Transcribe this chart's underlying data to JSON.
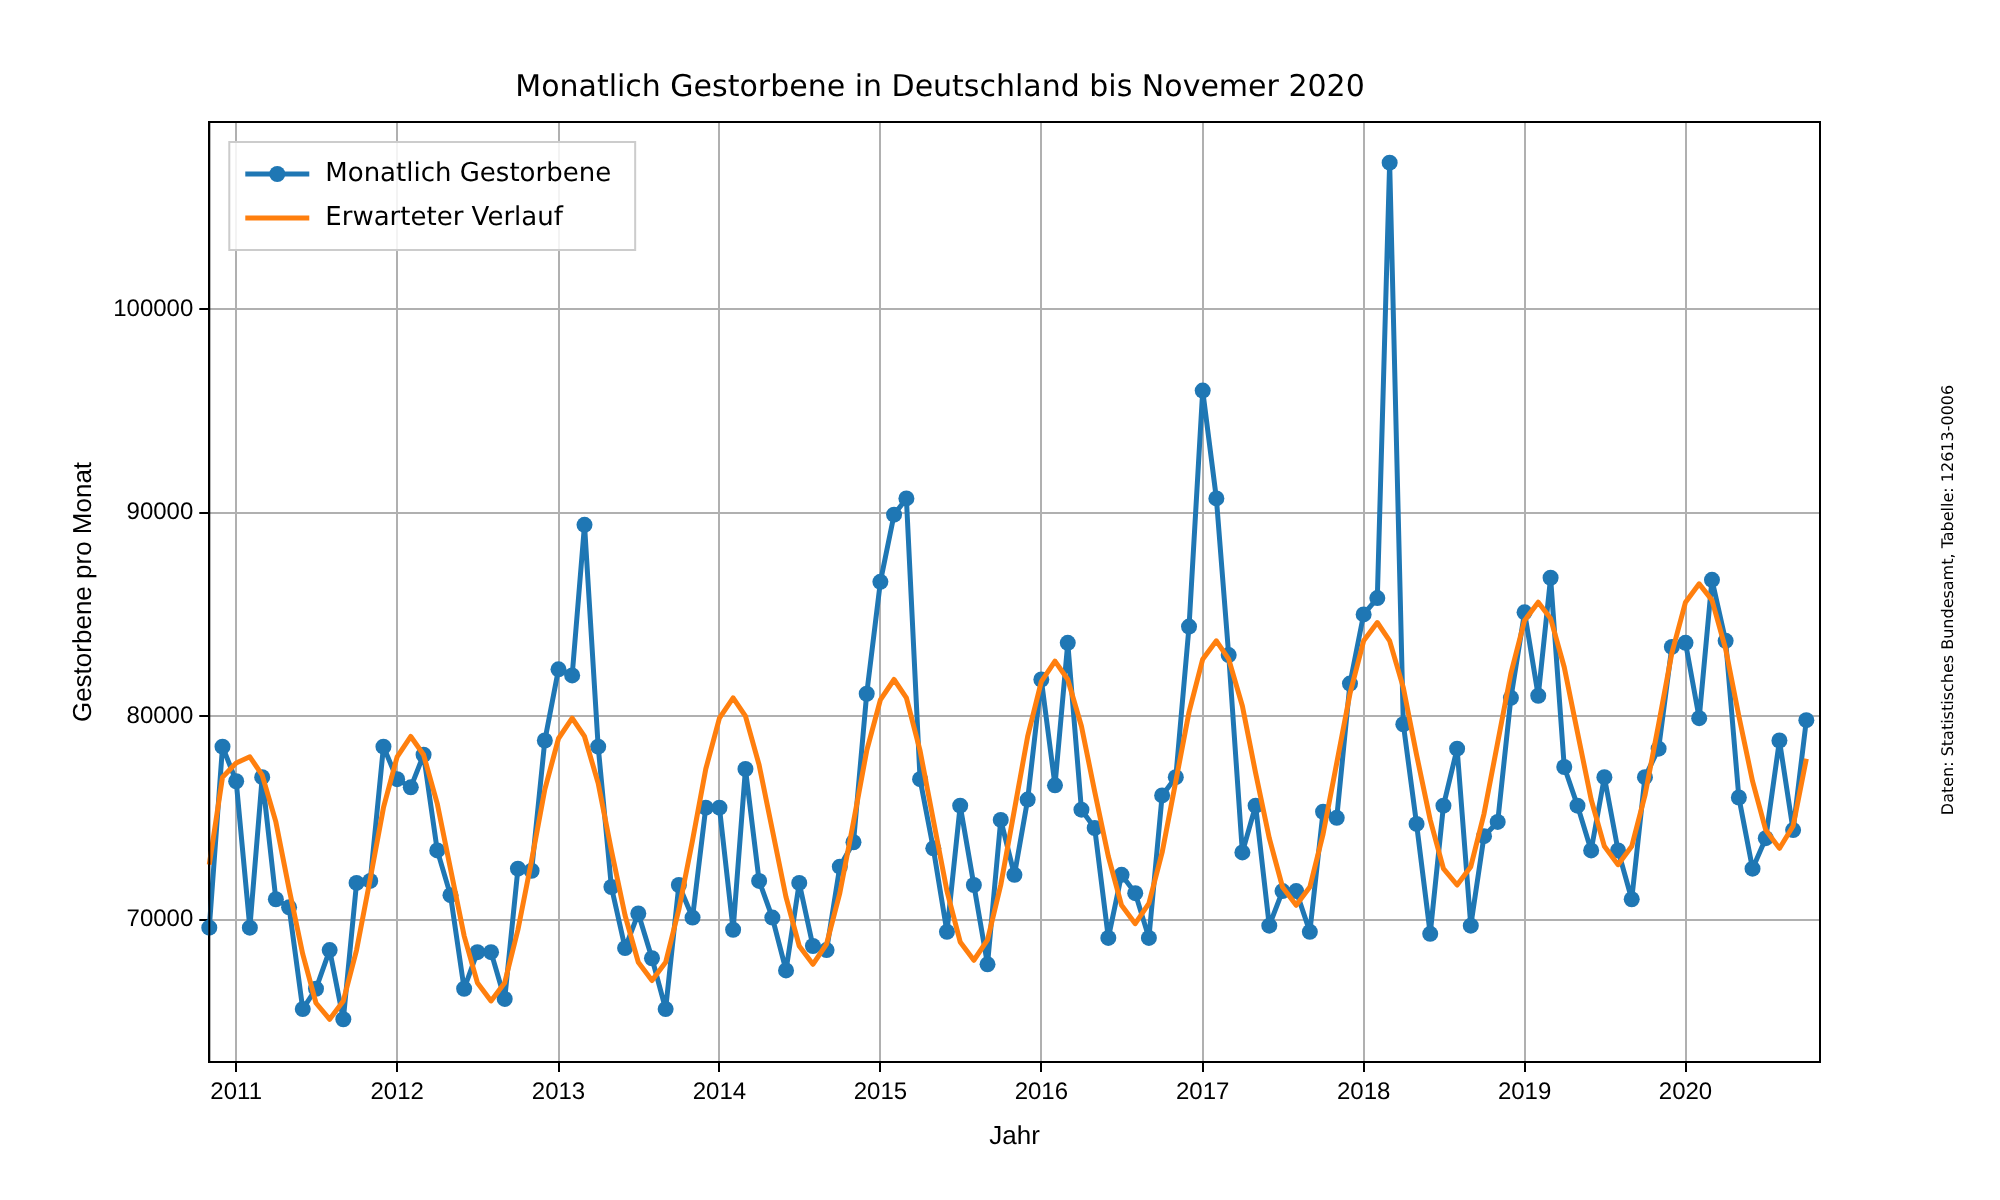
{
  "chart_data": {
    "type": "line",
    "title": "Monatlich Gestorbene in Deutschland bis Novemer 2020",
    "xlabel": "Jahr",
    "ylabel": "Gestorbene pro Monat",
    "annotations": [
      "Daten: Statistisches Bundesamt, Tabelle: 12613-0006"
    ],
    "x": [
      "2010-11",
      "2010-12",
      "2011-01",
      "2011-02",
      "2011-03",
      "2011-04",
      "2011-05",
      "2011-06",
      "2011-07",
      "2011-08",
      "2011-09",
      "2011-10",
      "2011-11",
      "2011-12",
      "2012-01",
      "2012-02",
      "2012-03",
      "2012-04",
      "2012-05",
      "2012-06",
      "2012-07",
      "2012-08",
      "2012-09",
      "2012-10",
      "2012-11",
      "2012-12",
      "2013-01",
      "2013-02",
      "2013-03",
      "2013-04",
      "2013-05",
      "2013-06",
      "2013-07",
      "2013-08",
      "2013-09",
      "2013-10",
      "2013-11",
      "2013-12",
      "2014-01",
      "2014-02",
      "2014-03",
      "2014-04",
      "2014-05",
      "2014-06",
      "2014-07",
      "2014-08",
      "2014-09",
      "2014-10",
      "2014-11",
      "2014-12",
      "2015-01",
      "2015-02",
      "2015-03",
      "2015-04",
      "2015-05",
      "2015-06",
      "2015-07",
      "2015-08",
      "2015-09",
      "2015-10",
      "2015-11",
      "2015-12",
      "2016-01",
      "2016-02",
      "2016-03",
      "2016-04",
      "2016-05",
      "2016-06",
      "2016-07",
      "2016-08",
      "2016-09",
      "2016-10",
      "2016-11",
      "2016-12",
      "2017-01",
      "2017-02",
      "2017-03",
      "2017-04",
      "2017-05",
      "2017-06",
      "2017-07",
      "2017-08",
      "2017-09",
      "2017-10",
      "2017-11",
      "2017-12",
      "2018-01",
      "2018-02",
      "2018-03",
      "2018-04",
      "2018-05",
      "2018-06",
      "2018-07",
      "2018-08",
      "2018-09",
      "2018-10",
      "2018-11",
      "2018-12",
      "2019-01",
      "2019-02",
      "2019-03",
      "2019-04",
      "2019-05",
      "2019-06",
      "2019-07",
      "2019-08",
      "2019-09",
      "2019-10",
      "2019-11",
      "2019-12",
      "2020-01",
      "2020-02",
      "2020-03",
      "2020-04",
      "2020-05",
      "2020-06",
      "2020-07",
      "2020-08",
      "2020-09",
      "2020-10"
    ],
    "series": [
      {
        "name": "Monatlich Gestorbene",
        "color": "#1f77b4",
        "marker": "circle",
        "values": [
          69600,
          78500,
          76800,
          69600,
          77000,
          71000,
          70600,
          65600,
          66600,
          68500,
          65100,
          71800,
          71900,
          78500,
          76900,
          76500,
          78100,
          73400,
          71200,
          66600,
          68400,
          68400,
          66100,
          72500,
          72400,
          78800,
          82300,
          82000,
          89400,
          78500,
          71600,
          68600,
          70300,
          68100,
          65600,
          71700,
          70100,
          75500,
          75500,
          69500,
          77400,
          71900,
          70100,
          67500,
          71800,
          68700,
          68500,
          72600,
          73800,
          81100,
          86600,
          89900,
          90700,
          76900,
          73500,
          69400,
          75600,
          71700,
          67800,
          74900,
          72200,
          75900,
          81800,
          76600,
          83600,
          75400,
          74500,
          69100,
          72200,
          71300,
          69100,
          76100,
          77000,
          84400,
          96000,
          90700,
          83000,
          73300,
          75600,
          69700,
          71400,
          71400,
          69400,
          75300,
          75000,
          81600,
          85000,
          85800,
          107200,
          79600,
          74700,
          69300,
          75600,
          78400,
          69700,
          74100,
          74800,
          80900,
          85100,
          81000,
          86800,
          77500,
          75600,
          73400,
          77000,
          73400,
          71000,
          77000,
          78400,
          83400,
          83600,
          79900,
          86700,
          83700,
          76000,
          72500,
          74000,
          78800,
          74400,
          79800
        ]
      },
      {
        "name": "Erwarteter Verlauf",
        "color": "#ff7f0e",
        "marker": "none",
        "values": [
          72700,
          77000,
          77700,
          78000,
          77100,
          74800,
          71500,
          68300,
          65900,
          65100,
          66000,
          68500,
          72000,
          75500,
          78000,
          79000,
          78100,
          75700,
          72500,
          69200,
          66900,
          66000,
          66900,
          69500,
          72900,
          76400,
          78900,
          79900,
          79000,
          76700,
          73400,
          70200,
          67900,
          67000,
          67900,
          70500,
          73900,
          77400,
          79900,
          80900,
          80000,
          77600,
          74400,
          71100,
          68700,
          67800,
          68800,
          71300,
          74800,
          78300,
          80800,
          81800,
          80900,
          78300,
          74900,
          71400,
          68900,
          68000,
          69000,
          71700,
          75400,
          79000,
          81700,
          82700,
          81800,
          79500,
          76300,
          73100,
          70700,
          69800,
          70800,
          73300,
          76800,
          80200,
          82800,
          83700,
          82800,
          80500,
          77200,
          74000,
          71600,
          70700,
          71600,
          74200,
          77700,
          81100,
          83700,
          84600,
          83700,
          81400,
          78100,
          74900,
          72500,
          71700,
          72600,
          75200,
          78700,
          82100,
          84700,
          85600,
          84800,
          82400,
          79200,
          75900,
          73600,
          72700,
          73600,
          76100,
          79600,
          83100,
          85600,
          86500,
          85700,
          83300,
          80000,
          76800,
          74400,
          73500,
          74600,
          77900
        ]
      }
    ],
    "xlim": [
      "2010-11",
      "2020-11"
    ],
    "ylim": [
      63000,
      109200
    ],
    "xticks": [
      "2011",
      "2012",
      "2013",
      "2014",
      "2015",
      "2016",
      "2017",
      "2018",
      "2019",
      "2020"
    ],
    "yticks": [
      70000,
      80000,
      90000,
      100000
    ],
    "grid": true,
    "legend": "top left",
    "line_style": "solid"
  }
}
